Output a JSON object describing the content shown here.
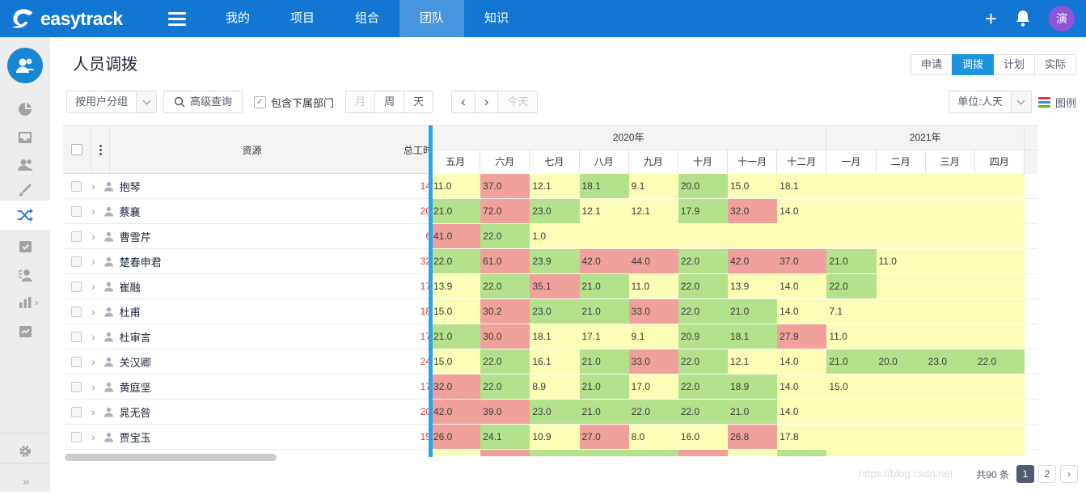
{
  "navbar": {
    "brand": "easytrack",
    "items": [
      "我的",
      "项目",
      "组合",
      "团队",
      "知识"
    ],
    "active_item": "团队",
    "plus": "+",
    "avatar_text": "演",
    "colors": {
      "bg": "#1277d3",
      "active_bg": "#4795dd",
      "avatar_bg": "#8e54d9"
    }
  },
  "sidebar": {
    "active_icon": "shuffle-icon"
  },
  "page": {
    "title": "人员调拨",
    "view_tabs": [
      "申请",
      "调拨",
      "计划",
      "实际"
    ],
    "active_tab": "调拨"
  },
  "toolbar": {
    "group_select": "按用户分组",
    "advanced_search": "高级查询",
    "include_sub_depts": "包含下属部门",
    "include_sub_depts_checked": true,
    "check_glyph": "✓",
    "zoom_buttons": [
      "月",
      "周",
      "天"
    ],
    "zoom_disabled": "月",
    "prev": "‹",
    "next": "›",
    "today": "今天",
    "unit_select": "单位:人天",
    "legend_label": "图例",
    "legend_colors": [
      "#e4393c",
      "#3a8ee6",
      "#67b30f"
    ]
  },
  "table": {
    "resource_header": "资源",
    "total_header": "总工时",
    "years": [
      {
        "label": "2020年",
        "months": [
          "五月",
          "六月",
          "七月",
          "八月",
          "九月",
          "十月",
          "十一月",
          "十二月"
        ]
      },
      {
        "label": "2021年",
        "months": [
          "一月",
          "二月",
          "三月",
          "四月"
        ]
      }
    ],
    "cell_colors": {
      "y": "#fcfdb6",
      "g": "#b4e18c",
      "r": "#f0a19c"
    },
    "rows": [
      {
        "name": "抱琴",
        "total": "14",
        "cells": [
          [
            "11.0",
            "y"
          ],
          [
            "37.0",
            "r"
          ],
          [
            "12.1",
            "y"
          ],
          [
            "18.1",
            "g"
          ],
          [
            "9.1",
            "y"
          ],
          [
            "20.0",
            "g"
          ],
          [
            "15.0",
            "y"
          ],
          [
            "18.1",
            "y"
          ],
          [
            "",
            "y"
          ],
          [
            "",
            "y"
          ],
          [
            "",
            "y"
          ],
          [
            "",
            "y"
          ]
        ]
      },
      {
        "name": "蔡襄",
        "total": "20",
        "cells": [
          [
            "21.0",
            "g"
          ],
          [
            "72.0",
            "r"
          ],
          [
            "23.0",
            "g"
          ],
          [
            "12.1",
            "y"
          ],
          [
            "12.1",
            "y"
          ],
          [
            "17.9",
            "g"
          ],
          [
            "32.0",
            "r"
          ],
          [
            "14.0",
            "y"
          ],
          [
            "",
            "y"
          ],
          [
            "",
            "y"
          ],
          [
            "",
            "y"
          ],
          [
            "",
            "y"
          ]
        ]
      },
      {
        "name": "曹雪芹",
        "total": "6",
        "cells": [
          [
            "41.0",
            "r"
          ],
          [
            "22.0",
            "g"
          ],
          [
            "1.0",
            "y"
          ],
          [
            "",
            "y"
          ],
          [
            "",
            "y"
          ],
          [
            "",
            "y"
          ],
          [
            "",
            "y"
          ],
          [
            "",
            "y"
          ],
          [
            "",
            "y"
          ],
          [
            "",
            "y"
          ],
          [
            "",
            "y"
          ],
          [
            "",
            "y"
          ]
        ]
      },
      {
        "name": "楚春申君",
        "total": "32",
        "cells": [
          [
            "22.0",
            "g"
          ],
          [
            "61.0",
            "r"
          ],
          [
            "23.9",
            "g"
          ],
          [
            "42.0",
            "r"
          ],
          [
            "44.0",
            "r"
          ],
          [
            "22.0",
            "g"
          ],
          [
            "42.0",
            "r"
          ],
          [
            "37.0",
            "r"
          ],
          [
            "21.0",
            "g"
          ],
          [
            "11.0",
            "y"
          ],
          [
            "",
            "y"
          ],
          [
            "",
            "y"
          ]
        ]
      },
      {
        "name": "崔融",
        "total": "17",
        "cells": [
          [
            "13.9",
            "y"
          ],
          [
            "22.0",
            "g"
          ],
          [
            "35.1",
            "r"
          ],
          [
            "21.0",
            "g"
          ],
          [
            "11.0",
            "y"
          ],
          [
            "22.0",
            "g"
          ],
          [
            "13.9",
            "y"
          ],
          [
            "14.0",
            "y"
          ],
          [
            "22.0",
            "g"
          ],
          [
            "",
            "y"
          ],
          [
            "",
            "y"
          ],
          [
            "",
            "y"
          ]
        ]
      },
      {
        "name": "杜甫",
        "total": "18",
        "cells": [
          [
            "15.0",
            "y"
          ],
          [
            "30.2",
            "r"
          ],
          [
            "23.0",
            "g"
          ],
          [
            "21.0",
            "g"
          ],
          [
            "33.0",
            "r"
          ],
          [
            "22.0",
            "g"
          ],
          [
            "21.0",
            "g"
          ],
          [
            "14.0",
            "y"
          ],
          [
            "7.1",
            "y"
          ],
          [
            "",
            "y"
          ],
          [
            "",
            "y"
          ],
          [
            "",
            "y"
          ]
        ]
      },
      {
        "name": "杜审言",
        "total": "17",
        "cells": [
          [
            "21.0",
            "g"
          ],
          [
            "30.0",
            "r"
          ],
          [
            "18.1",
            "y"
          ],
          [
            "17.1",
            "y"
          ],
          [
            "9.1",
            "y"
          ],
          [
            "20.9",
            "g"
          ],
          [
            "18.1",
            "g"
          ],
          [
            "27.9",
            "r"
          ],
          [
            "11.0",
            "y"
          ],
          [
            "",
            "y"
          ],
          [
            "",
            "y"
          ],
          [
            "",
            "y"
          ]
        ]
      },
      {
        "name": "关汉卿",
        "total": "24",
        "cells": [
          [
            "15.0",
            "y"
          ],
          [
            "22.0",
            "g"
          ],
          [
            "16.1",
            "y"
          ],
          [
            "21.0",
            "g"
          ],
          [
            "33.0",
            "r"
          ],
          [
            "22.0",
            "g"
          ],
          [
            "12.1",
            "y"
          ],
          [
            "14.0",
            "y"
          ],
          [
            "21.0",
            "g"
          ],
          [
            "20.0",
            "g"
          ],
          [
            "23.0",
            "g"
          ],
          [
            "22.0",
            "g"
          ]
        ]
      },
      {
        "name": "黄庭坚",
        "total": "17",
        "cells": [
          [
            "32.0",
            "r"
          ],
          [
            "22.0",
            "g"
          ],
          [
            "8.9",
            "y"
          ],
          [
            "21.0",
            "g"
          ],
          [
            "17.0",
            "y"
          ],
          [
            "22.0",
            "g"
          ],
          [
            "18.9",
            "g"
          ],
          [
            "14.0",
            "y"
          ],
          [
            "15.0",
            "y"
          ],
          [
            "",
            "y"
          ],
          [
            "",
            "y"
          ],
          [
            "",
            "y"
          ]
        ]
      },
      {
        "name": "晁无咎",
        "total": "20",
        "cells": [
          [
            "42.0",
            "r"
          ],
          [
            "39.0",
            "r"
          ],
          [
            "23.0",
            "g"
          ],
          [
            "21.0",
            "g"
          ],
          [
            "22.0",
            "g"
          ],
          [
            "22.0",
            "g"
          ],
          [
            "21.0",
            "g"
          ],
          [
            "14.0",
            "y"
          ],
          [
            "",
            "y"
          ],
          [
            "",
            "y"
          ],
          [
            "",
            "y"
          ],
          [
            "",
            "y"
          ]
        ]
      },
      {
        "name": "贾宝玉",
        "total": "15",
        "cells": [
          [
            "26.0",
            "r"
          ],
          [
            "24.1",
            "g"
          ],
          [
            "10.9",
            "y"
          ],
          [
            "27.0",
            "r"
          ],
          [
            "8.0",
            "y"
          ],
          [
            "16.0",
            "y"
          ],
          [
            "26.8",
            "r"
          ],
          [
            "17.8",
            "y"
          ],
          [
            "",
            "y"
          ],
          [
            "",
            "y"
          ],
          [
            "",
            "y"
          ],
          [
            "",
            "y"
          ]
        ]
      }
    ],
    "partial_row_colors": [
      "y",
      "r",
      "g",
      "g",
      "g",
      "r",
      "y",
      "g",
      "y",
      "y",
      "y",
      "y"
    ]
  },
  "pagination": {
    "total_text": "共90 条",
    "pages": [
      "1",
      "2"
    ],
    "active_page": "1",
    "next": "›"
  },
  "watermark": "https://blog.csdn.net"
}
